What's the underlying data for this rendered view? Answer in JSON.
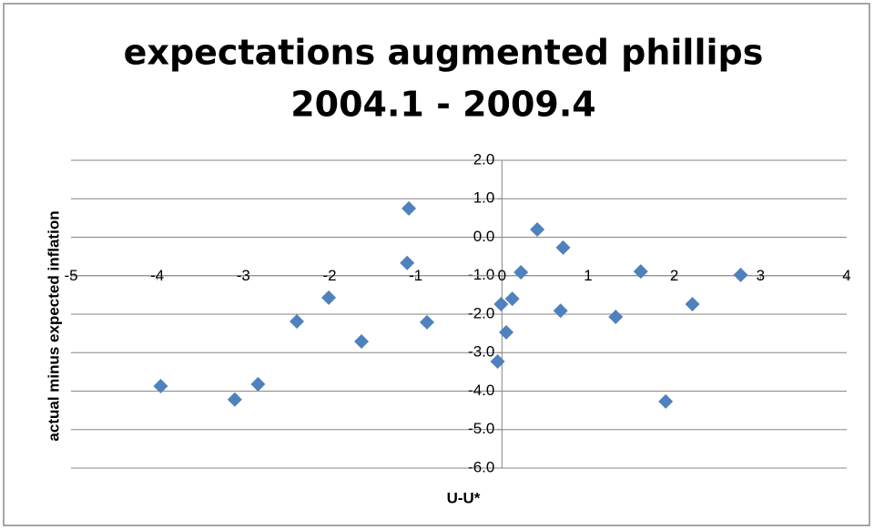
{
  "chart_data": {
    "type": "scatter",
    "title": [
      "expectations augmented phillips",
      "2004.1 - 2009.4"
    ],
    "x_label": "U-U*",
    "y_label": "actual minus expected inflation",
    "color": "#4f81bd",
    "x": [
      -3.96,
      -3.1,
      -2.83,
      -2.38,
      -2.01,
      -1.63,
      -1.08,
      -1.1,
      -0.87,
      -0.05,
      -0.01,
      0.05,
      0.12,
      0.22,
      0.41,
      0.71,
      0.68,
      1.32,
      1.61,
      1.9,
      2.21,
      2.77
    ],
    "values": [
      -3.87,
      -4.22,
      -3.82,
      -2.19,
      -1.57,
      -2.71,
      0.75,
      -0.67,
      -2.21,
      -3.23,
      -1.74,
      -2.47,
      -1.6,
      -0.91,
      0.2,
      -0.27,
      -1.91,
      -2.07,
      -0.89,
      -4.27,
      -1.74,
      -0.98
    ],
    "xlim": [
      -5,
      4
    ],
    "xticks": [
      -5,
      -4,
      -3,
      -2,
      -1,
      0,
      1,
      2,
      3,
      4
    ],
    "ylim": [
      -6,
      2
    ],
    "yticks": [
      {
        "value": 2,
        "label": "2.0"
      },
      {
        "value": 1,
        "label": "1.0"
      },
      {
        "value": 0,
        "label": "0.0"
      },
      {
        "value": -1,
        "label": "-1.0"
      },
      {
        "value": -2,
        "label": "-2.0"
      },
      {
        "value": -3,
        "label": "-3.0"
      },
      {
        "value": -4,
        "label": "-4.0"
      },
      {
        "value": -5,
        "label": "-5.0"
      },
      {
        "value": -6,
        "label": "-6.0"
      }
    ],
    "x_axis_crosses_y": -1,
    "y_axis_crosses_x": 0,
    "grid": true
  }
}
